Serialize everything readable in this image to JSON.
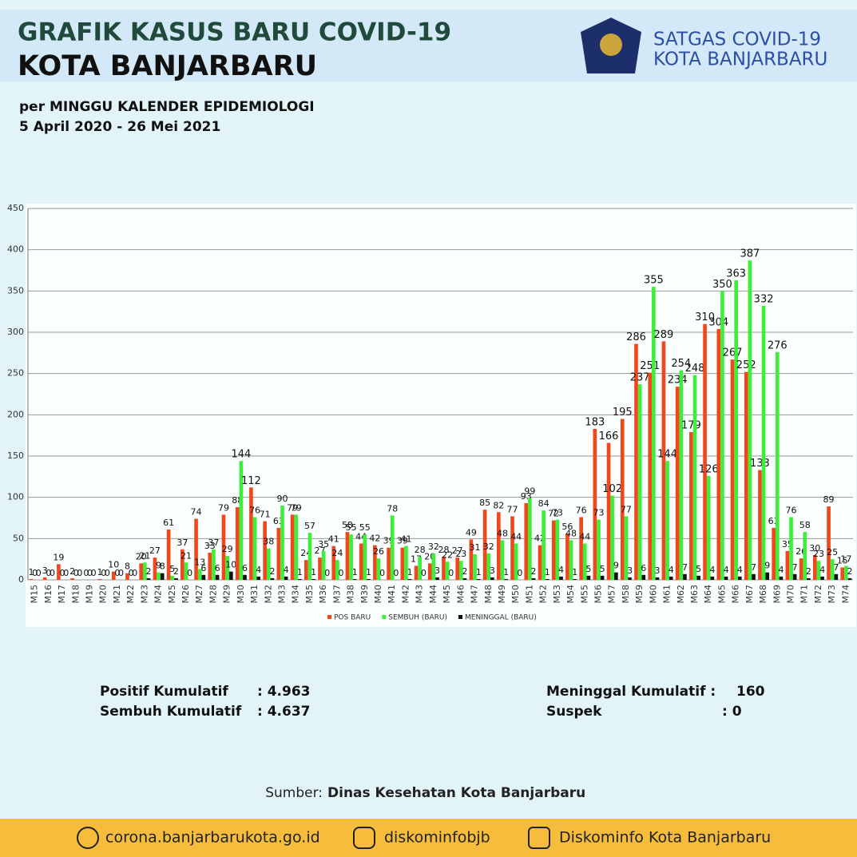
{
  "header": {
    "title_lines": [
      "GRAFIK KASUS BARU COVID-19",
      "KOTA BANJARBARU"
    ],
    "subtitle_lines": [
      "per MINGGU KALENDER EPIDEMIOLOGI",
      "5 April 2020 - 26 Mei 2021"
    ],
    "org_lines": [
      "SATGAS COVID-19",
      "KOTA BANJARBARU"
    ]
  },
  "chart_data": {
    "type": "bar",
    "categories": [
      "M15",
      "M16",
      "M17",
      "M18",
      "M19",
      "M20",
      "M21",
      "M22",
      "M23",
      "M24",
      "M25",
      "M26",
      "M27",
      "M28",
      "M29",
      "M30",
      "M31",
      "M32",
      "M33",
      "M34",
      "M35",
      "M36",
      "M37",
      "M38",
      "M39",
      "M40",
      "M41",
      "M42",
      "M43",
      "M44",
      "M45",
      "M46",
      "M47",
      "M48",
      "M49",
      "M50",
      "M51",
      "M52",
      "M53",
      "M54",
      "M55",
      "M56",
      "M57",
      "M58",
      "M59",
      "M60",
      "M61",
      "M62",
      "M63",
      "M64",
      "M65",
      "M66",
      "M67",
      "M68",
      "M69",
      "M70",
      "M71",
      "M72",
      "M73",
      "M74"
    ],
    "series": [
      {
        "name": "POS BARU",
        "color": "#f2471c",
        "values": [
          1,
          3,
          19,
          2,
          0,
          1,
          10,
          8,
          20,
          27,
          61,
          37,
          74,
          33,
          79,
          88,
          112,
          71,
          63,
          79,
          24,
          27,
          41,
          58,
          44,
          42,
          39,
          39,
          17,
          20,
          28,
          27,
          49,
          85,
          82,
          77,
          93,
          42,
          72,
          56,
          76,
          183,
          166,
          195,
          286,
          251,
          289,
          234,
          179,
          310,
          304,
          267,
          252,
          133,
          63,
          35,
          26,
          30,
          89,
          15
        ]
      },
      {
        "name": "SEMBUH (BARU)",
        "color": "#3cf03a",
        "values": [
          0,
          0,
          0,
          0,
          0,
          0,
          0,
          0,
          21,
          9,
          5,
          21,
          13,
          37,
          29,
          144,
          76,
          38,
          90,
          79,
          57,
          35,
          24,
          55,
          55,
          26,
          78,
          41,
          28,
          32,
          22,
          23,
          31,
          32,
          48,
          44,
          99,
          84,
          73,
          48,
          44,
          73,
          102,
          77,
          237,
          355,
          144,
          254,
          248,
          126,
          350,
          363,
          387,
          332,
          276,
          76,
          58,
          23,
          25,
          17
        ]
      },
      {
        "name": "MENINGGAL (BARU)",
        "color": "#111111",
        "values": [
          0,
          0,
          0,
          0,
          0,
          0,
          0,
          0,
          2,
          8,
          2,
          0,
          6,
          6,
          10,
          6,
          4,
          2,
          4,
          1,
          1,
          0,
          0,
          1,
          1,
          0,
          0,
          1,
          0,
          3,
          0,
          2,
          1,
          3,
          1,
          0,
          2,
          1,
          4,
          1,
          5,
          5,
          9,
          3,
          6,
          3,
          4,
          7,
          5,
          4,
          4,
          4,
          7,
          9,
          4,
          7,
          2,
          4,
          7,
          2
        ]
      }
    ],
    "ylim": [
      0,
      450
    ],
    "yticks": [
      0,
      50,
      100,
      150,
      200,
      250,
      300,
      350,
      400,
      450
    ],
    "grid": true,
    "legend": "bottom"
  },
  "stats": {
    "left": [
      [
        "Positif Kumulatif",
        ": 4.963"
      ],
      [
        "Sembuh Kumulatif",
        ": 4.637"
      ]
    ],
    "right": [
      [
        "Meninggal Kumulatif :",
        "160"
      ],
      [
        "Suspek",
        ":  0"
      ]
    ]
  },
  "source": {
    "prefix": "Sumber:",
    "name": "Dinas Kesehatan Kota Banjarbaru"
  },
  "footer": [
    "corona.banjarbarukota.go.id",
    "diskominfobjb",
    "Diskominfo Kota Banjarbaru"
  ]
}
